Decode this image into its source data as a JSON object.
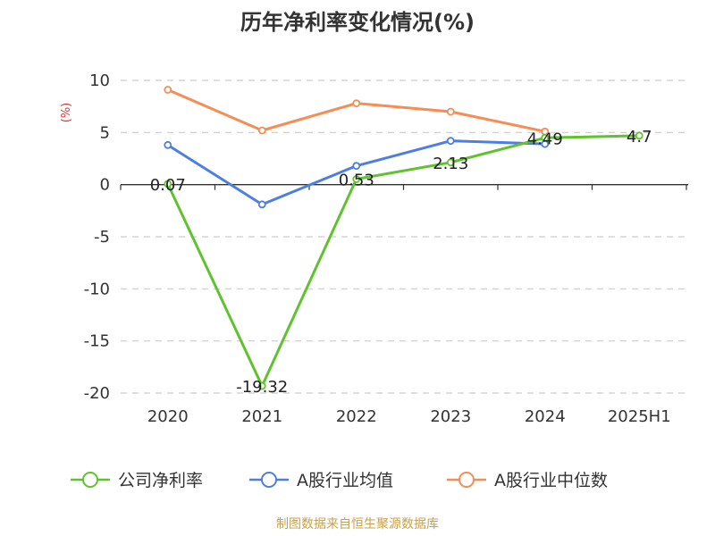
{
  "chart_data": {
    "type": "line",
    "title": "历年净利率变化情况(%)",
    "ylabel": "(%)",
    "xlabel": "",
    "categories": [
      "2020",
      "2021",
      "2022",
      "2023",
      "2024",
      "2025H1"
    ],
    "ylim": [
      -20,
      10
    ],
    "yticks": [
      10,
      5,
      0,
      -5,
      -10,
      -15,
      -20
    ],
    "grid": true,
    "legend_position": "bottom",
    "series": [
      {
        "name": "公司净利率",
        "color": "#5fc22e",
        "values": [
          0.07,
          -19.32,
          0.53,
          2.13,
          4.49,
          4.7
        ],
        "labels": [
          "0.07",
          "-19.32",
          "0.53",
          "2.13",
          "4.49",
          "4.7"
        ]
      },
      {
        "name": "A股行业均值",
        "color": "#4e7fe0",
        "values": [
          3.8,
          -1.9,
          1.8,
          4.2,
          3.9,
          null
        ]
      },
      {
        "name": "A股行业中位数",
        "color": "#f58d55",
        "values": [
          9.1,
          5.2,
          7.8,
          7.0,
          5.1,
          null
        ]
      }
    ],
    "source": "制图数据来自恒生聚源数据库"
  }
}
